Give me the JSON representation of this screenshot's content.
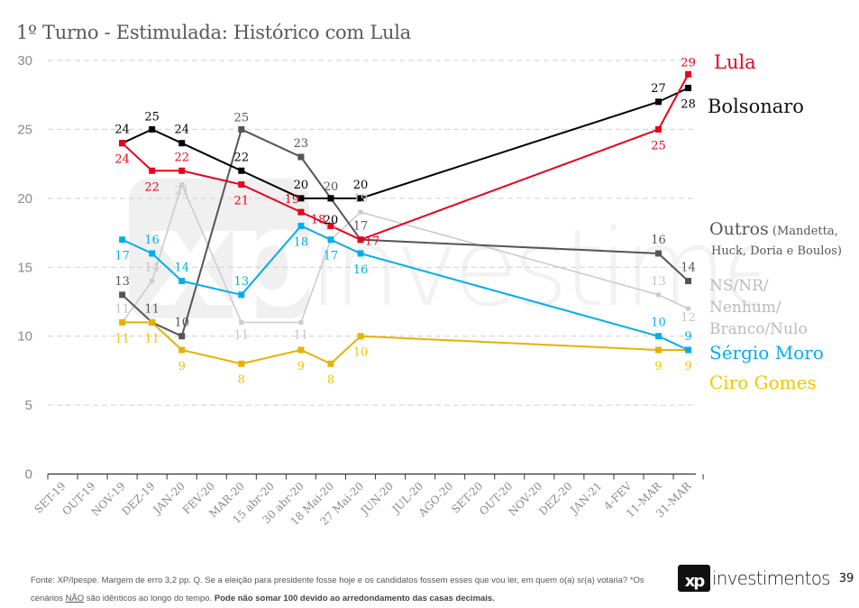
{
  "title": "1º Turno - Estimulada: Histórico com Lula",
  "footnote": {
    "text1": "Fonte: XP/Ipespe. Margem de erro 3,2 pp. Q. Se a eleição para presidente fosse hoje e os candidatos fossem esses que vou ler, em quem o(a) sr(a) votaria? *Os cenários ",
    "underlined": "NÃO",
    "text2": " são idênticos ao longo do tempo. ",
    "bold": "Pode não somar 100 devido ao arredondamento das casas decimais."
  },
  "brand": {
    "logo": "xp",
    "name": "investimentos",
    "page_number": "39"
  },
  "watermark": {
    "logo": "xp",
    "name": "investimentos"
  },
  "chart_data": {
    "type": "line",
    "title": "1º Turno - Estimulada: Histórico com Lula",
    "xlabel": "",
    "ylabel": "",
    "ylim": [
      0,
      30
    ],
    "yticks": [
      0,
      5,
      10,
      15,
      20,
      25,
      30
    ],
    "grid": "horizontal dashed",
    "legend_placement": "right",
    "categories": [
      "SET-19",
      "OUT-19",
      "NOV-19",
      "DEZ-19",
      "JAN-20",
      "FEV-20",
      "MAR-20",
      "15 abr-20",
      "30 abr-20",
      "18 Mai-20",
      "27 Mai-20",
      "JUN-20",
      "JUL-20",
      "AGO-20",
      "SET-20",
      "OUT-20",
      "NOV-20",
      "DEZ-20",
      "JAN-21",
      "4-FEV",
      "11-MAR",
      "31-MAR"
    ],
    "series": [
      {
        "name": "Lula",
        "legend": [
          "Lula"
        ],
        "color": "#e8001c",
        "legend_color": "#e8001c",
        "values": [
          null,
          null,
          24,
          22,
          22,
          null,
          21,
          null,
          19,
          18,
          17,
          null,
          null,
          null,
          null,
          null,
          null,
          null,
          null,
          null,
          25,
          29
        ],
        "labels": [
          null,
          null,
          "24",
          "22",
          "22",
          null,
          "21",
          null,
          "19",
          "18",
          "17",
          null,
          null,
          null,
          null,
          null,
          null,
          null,
          null,
          null,
          "25",
          "29"
        ]
      },
      {
        "name": "Bolsonaro",
        "legend": [
          "Bolsonaro"
        ],
        "color": "#000000",
        "legend_color": "#111111",
        "values": [
          null,
          null,
          24,
          25,
          24,
          null,
          22,
          null,
          20,
          20,
          20,
          null,
          null,
          null,
          null,
          null,
          null,
          null,
          null,
          null,
          27,
          28
        ],
        "labels": [
          null,
          null,
          "24",
          "25",
          "24",
          null,
          "22",
          null,
          "20",
          "20",
          "20",
          null,
          null,
          null,
          null,
          null,
          null,
          null,
          null,
          null,
          "27",
          "28"
        ]
      },
      {
        "name": "Outros (Mandetta, Huck, Doria e Boulos)",
        "legend": [
          "Outros",
          "(Mandetta,",
          "Huck, Doria e Boulos)"
        ],
        "color": "#555555",
        "legend_color": "#555555",
        "values": [
          null,
          null,
          13,
          11,
          10,
          null,
          25,
          null,
          23,
          20,
          17,
          null,
          null,
          null,
          null,
          null,
          null,
          null,
          null,
          null,
          16,
          14
        ],
        "labels": [
          null,
          null,
          "13",
          "11",
          "10",
          null,
          "25",
          null,
          "23",
          "20",
          "17",
          null,
          null,
          null,
          null,
          null,
          null,
          null,
          null,
          null,
          "16",
          "14"
        ]
      },
      {
        "name": "NS/NR/Nenhum/Branco/Nulo",
        "legend": [
          "NS/NR/",
          "Nenhum/",
          "Branco/Nulo"
        ],
        "color": "#cccccc",
        "legend_color": "#bbbbbb",
        "values": [
          null,
          null,
          11,
          14,
          21,
          null,
          11,
          null,
          11,
          17,
          19,
          null,
          null,
          null,
          null,
          null,
          null,
          null,
          null,
          null,
          13,
          12
        ],
        "labels": [
          null,
          null,
          "11",
          "14",
          "21",
          null,
          "11",
          null,
          "11",
          "17",
          "19",
          null,
          null,
          null,
          null,
          null,
          null,
          null,
          null,
          null,
          "13",
          "12"
        ]
      },
      {
        "name": "Sérgio Moro",
        "legend": [
          "Sérgio Moro"
        ],
        "color": "#00aeef",
        "legend_color": "#00aeef",
        "values": [
          null,
          null,
          17,
          16,
          14,
          null,
          13,
          null,
          18,
          17,
          16,
          null,
          null,
          null,
          null,
          null,
          null,
          null,
          null,
          null,
          10,
          9
        ],
        "labels": [
          null,
          null,
          "17",
          "16",
          "14",
          null,
          "13",
          null,
          "18",
          "17",
          "16",
          null,
          null,
          null,
          null,
          null,
          null,
          null,
          null,
          null,
          "10",
          "9"
        ]
      },
      {
        "name": "Ciro Gomes",
        "legend": [
          "Ciro Gomes"
        ],
        "color": "#e8b100",
        "legend_color": "#f5c400",
        "values": [
          null,
          null,
          11,
          11,
          9,
          null,
          8,
          null,
          9,
          8,
          10,
          null,
          null,
          null,
          null,
          null,
          null,
          null,
          null,
          null,
          9,
          9
        ],
        "labels": [
          null,
          null,
          "11",
          "11",
          "9",
          null,
          "8",
          null,
          "9",
          "8",
          "10",
          null,
          null,
          null,
          null,
          null,
          null,
          null,
          null,
          null,
          "9",
          "9"
        ]
      }
    ]
  }
}
